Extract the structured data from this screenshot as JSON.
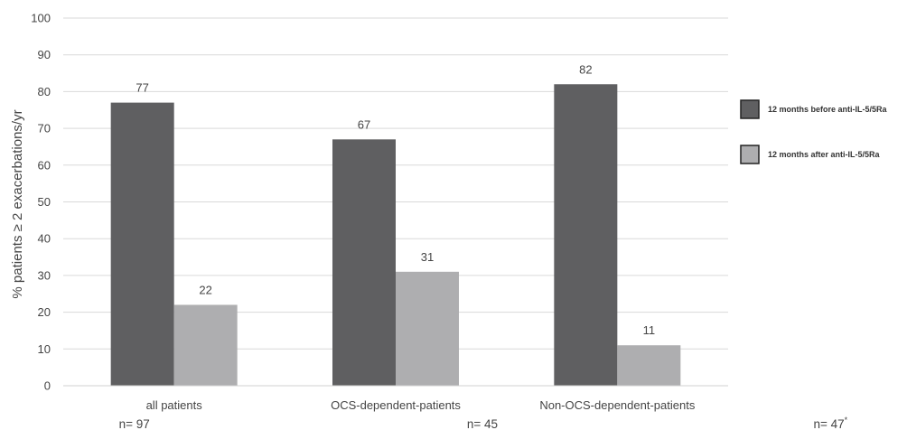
{
  "chart_data": {
    "type": "bar",
    "categories": [
      "all patients",
      "OCS-dependent-patients",
      "Non-OCS-dependent-patients"
    ],
    "sample_sizes": [
      "n= 97",
      "n= 45",
      "n= 47"
    ],
    "sample_size_marks": [
      "",
      "",
      "*"
    ],
    "series": [
      {
        "name": "12 months before anti-IL-5/5Ra",
        "values": [
          77,
          67,
          82
        ],
        "color": "#5f5f61"
      },
      {
        "name": "12 months after anti-IL-5/5Ra",
        "values": [
          22,
          31,
          11
        ],
        "color": "#aeaeb0"
      }
    ],
    "ylabel": "% patients ≥ 2 exacerbations/yr",
    "ylim": [
      0,
      100
    ],
    "yticks": [
      0,
      10,
      20,
      30,
      40,
      50,
      60,
      70,
      80,
      90,
      100
    ],
    "grid": true,
    "legend_position": "right"
  }
}
